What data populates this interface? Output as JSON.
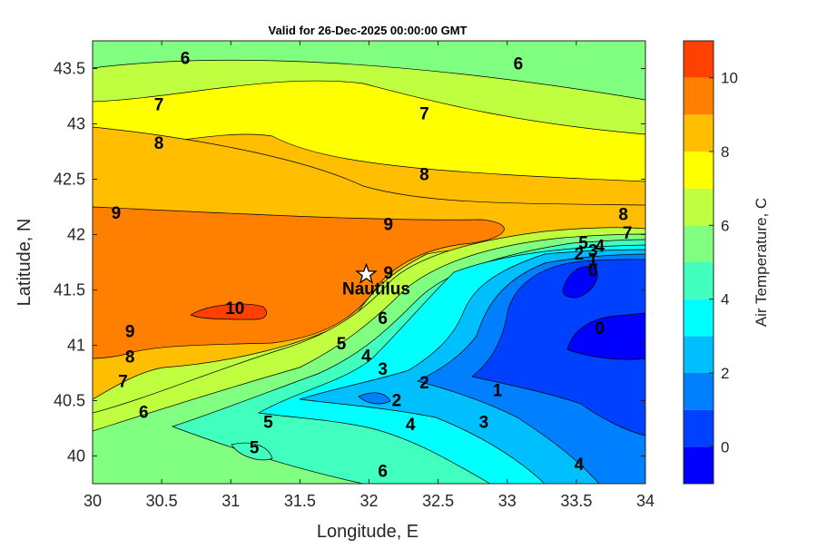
{
  "chart_data": {
    "type": "heatmap",
    "subtype": "filled-contour-map",
    "title": "Valid for 26-Dec-2025 00:00:00 GMT",
    "xlabel": "Longitude, E",
    "ylabel": "Latitude, N",
    "xlim": [
      30,
      34
    ],
    "ylim": [
      39.75,
      43.75
    ],
    "xticks": [
      30,
      30.5,
      31,
      31.5,
      32,
      32.5,
      33,
      33.5,
      34
    ],
    "xtick_labels": [
      "30",
      "30.5",
      "31",
      "31.5",
      "32",
      "32.5",
      "33",
      "33.5",
      "34"
    ],
    "yticks": [
      40,
      40.5,
      41,
      41.5,
      42,
      42.5,
      43,
      43.5
    ],
    "ytick_labels": [
      "40",
      "40.5",
      "41",
      "41.5",
      "42",
      "42.5",
      "43",
      "43.5"
    ],
    "colorbar": {
      "title": "Air Temperature, C",
      "range": [
        -1,
        11
      ],
      "ticks": [
        0,
        2,
        4,
        6,
        8,
        10
      ],
      "tick_labels": [
        "0",
        "2",
        "4",
        "6",
        "8",
        "10"
      ],
      "levels": [
        {
          "from": -1,
          "to": 0,
          "color": "#0000ff"
        },
        {
          "from": 0,
          "to": 1,
          "color": "#0040ff"
        },
        {
          "from": 1,
          "to": 2,
          "color": "#0080ff"
        },
        {
          "from": 2,
          "to": 3,
          "color": "#00bfff"
        },
        {
          "from": 3,
          "to": 4,
          "color": "#00ffff"
        },
        {
          "from": 4,
          "to": 5,
          "color": "#40ffbf"
        },
        {
          "from": 5,
          "to": 6,
          "color": "#80ff80"
        },
        {
          "from": 6,
          "to": 7,
          "color": "#bfff40"
        },
        {
          "from": 7,
          "to": 8,
          "color": "#ffff00"
        },
        {
          "from": 8,
          "to": 9,
          "color": "#ffbf00"
        },
        {
          "from": 9,
          "to": 10,
          "color": "#ff8000"
        },
        {
          "from": 10,
          "to": 11,
          "color": "#ff4000"
        },
        {
          "from": 11,
          "to": 12,
          "color": "#ff0000"
        }
      ]
    },
    "marker": {
      "label": "Nautilus",
      "lon": 31.98,
      "lat": 41.64,
      "symbol": "star"
    },
    "contour_labels": [
      {
        "text": "6",
        "lon": 30.67,
        "lat": 43.6
      },
      {
        "text": "6",
        "lon": 33.08,
        "lat": 43.55
      },
      {
        "text": "7",
        "lon": 30.48,
        "lat": 43.18
      },
      {
        "text": "7",
        "lon": 32.4,
        "lat": 43.1
      },
      {
        "text": "8",
        "lon": 30.48,
        "lat": 42.83
      },
      {
        "text": "8",
        "lon": 32.4,
        "lat": 42.55
      },
      {
        "text": "9",
        "lon": 30.17,
        "lat": 42.2
      },
      {
        "text": "9",
        "lon": 32.14,
        "lat": 42.1
      },
      {
        "text": "9",
        "lon": 32.14,
        "lat": 41.66
      },
      {
        "text": "8",
        "lon": 33.84,
        "lat": 42.19
      },
      {
        "text": "7",
        "lon": 33.87,
        "lat": 42.02
      },
      {
        "text": "5",
        "lon": 33.55,
        "lat": 41.93
      },
      {
        "text": "4",
        "lon": 33.67,
        "lat": 41.9
      },
      {
        "text": "3",
        "lon": 33.62,
        "lat": 41.86
      },
      {
        "text": "2",
        "lon": 33.52,
        "lat": 41.83
      },
      {
        "text": "1",
        "lon": 33.62,
        "lat": 41.78
      },
      {
        "text": "0",
        "lon": 33.62,
        "lat": 41.68
      },
      {
        "text": "10",
        "lon": 31.03,
        "lat": 41.34
      },
      {
        "text": "9",
        "lon": 30.27,
        "lat": 41.13
      },
      {
        "text": "8",
        "lon": 30.27,
        "lat": 40.9
      },
      {
        "text": "7",
        "lon": 30.22,
        "lat": 40.68
      },
      {
        "text": "6",
        "lon": 30.37,
        "lat": 40.4
      },
      {
        "text": "6",
        "lon": 32.1,
        "lat": 41.25
      },
      {
        "text": "5",
        "lon": 31.8,
        "lat": 41.02
      },
      {
        "text": "4",
        "lon": 31.98,
        "lat": 40.91
      },
      {
        "text": "3",
        "lon": 32.1,
        "lat": 40.79
      },
      {
        "text": "2",
        "lon": 32.4,
        "lat": 40.67
      },
      {
        "text": "2",
        "lon": 32.2,
        "lat": 40.51
      },
      {
        "text": "1",
        "lon": 32.93,
        "lat": 40.6
      },
      {
        "text": "0",
        "lon": 33.67,
        "lat": 41.16
      },
      {
        "text": "5",
        "lon": 31.27,
        "lat": 40.31
      },
      {
        "text": "4",
        "lon": 32.3,
        "lat": 40.29
      },
      {
        "text": "3",
        "lon": 32.83,
        "lat": 40.31
      },
      {
        "text": "5",
        "lon": 31.17,
        "lat": 40.08
      },
      {
        "text": "6",
        "lon": 32.1,
        "lat": 39.87
      },
      {
        "text": "4",
        "lon": 33.52,
        "lat": 39.93
      }
    ]
  }
}
